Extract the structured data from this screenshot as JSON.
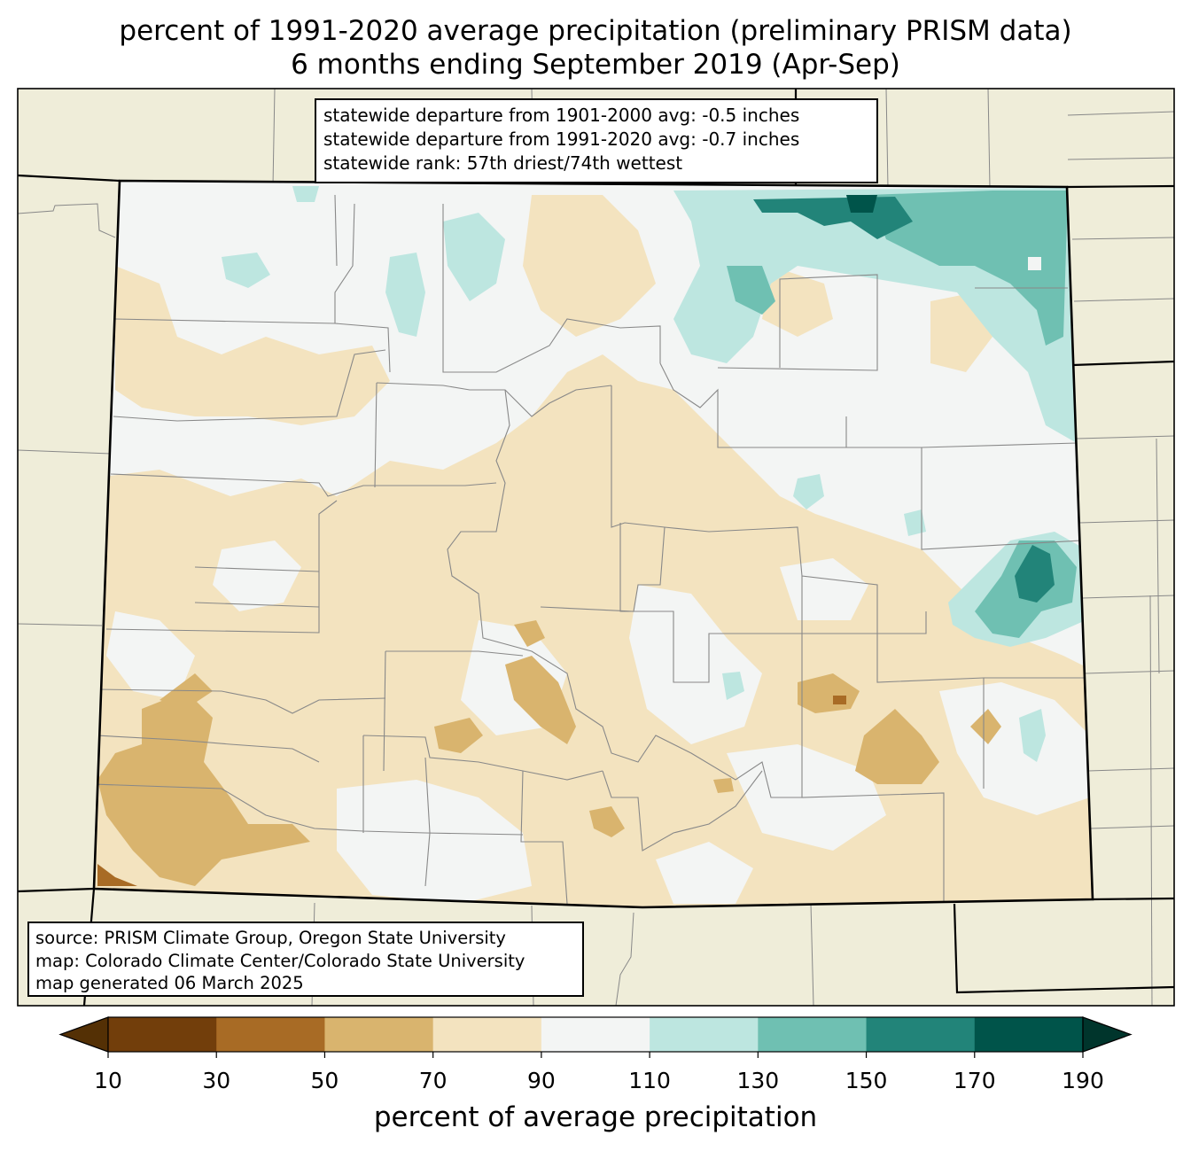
{
  "title": {
    "line1": "percent of 1991-2020 average precipitation (preliminary PRISM data)",
    "line2": "6 months ending September 2019 (Apr-Sep)"
  },
  "stats": {
    "line1": "statewide departure from 1901-2000 avg: -0.5 inches",
    "line2": "statewide departure from 1991-2020 avg: -0.7 inches",
    "line3": "statewide rank: 57th driest/74th wettest"
  },
  "credits": {
    "source": "source: PRISM Climate Group, Oregon State University",
    "map": "map: Colorado Climate Center/Colorado State University",
    "generated": "map generated 06 March 2025"
  },
  "colorbar": {
    "label": "percent of average precipitation",
    "ticks": [
      "10",
      "30",
      "50",
      "70",
      "90",
      "110",
      "130",
      "150",
      "170",
      "190"
    ],
    "colors": [
      "#543005",
      "#723e0b",
      "#a86b25",
      "#d9b46e",
      "#f3e3bf",
      "#f3f5f4",
      "#bde6e0",
      "#6fc0b2",
      "#228479",
      "#00544a",
      "#00352c"
    ]
  },
  "map_colors": {
    "background": "#efedd9",
    "state_fill": "#f3f5f4",
    "tan_light": "#f3e3bf",
    "tan_medium": "#d9b46e",
    "brown": "#a86b25",
    "teal_light": "#bde6e0",
    "teal_medium": "#6fc0b2",
    "teal_dark": "#228479",
    "teal_darkest": "#00544a",
    "county_line": "#888888"
  }
}
